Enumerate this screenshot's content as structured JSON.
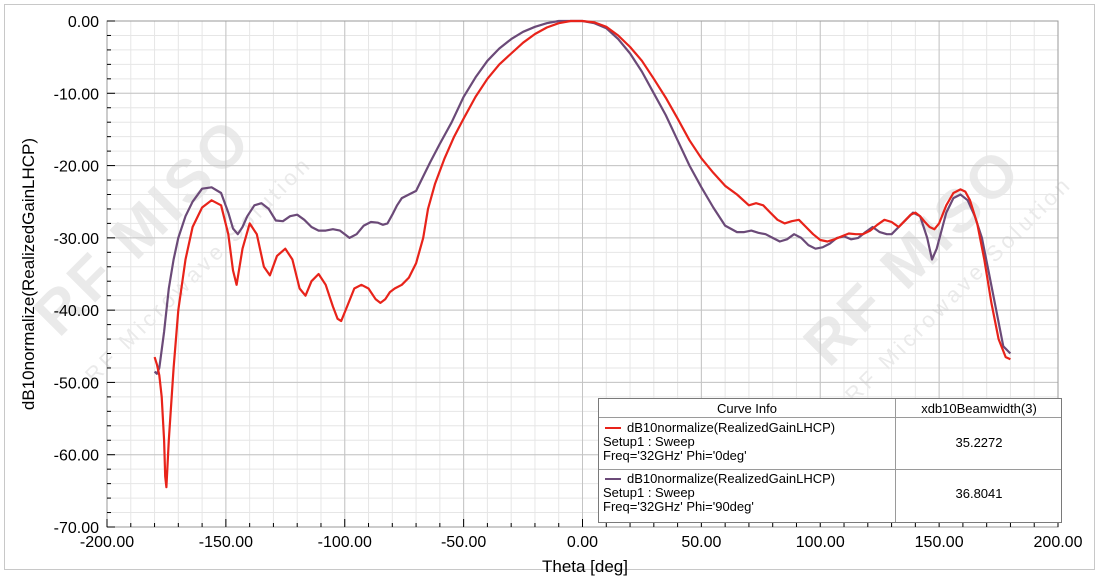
{
  "chart_data": {
    "type": "line",
    "xlabel": "Theta [deg]",
    "ylabel": "dB10normalize(RealizedGainLHCP)",
    "xlim": [
      -200,
      200
    ],
    "ylim": [
      -70,
      0
    ],
    "x_ticks": [
      "-200.00",
      "-150.00",
      "-100.00",
      "-50.00",
      "0.00",
      "50.00",
      "100.00",
      "150.00",
      "200.00"
    ],
    "y_ticks": [
      "0.00",
      "-10.00",
      "-20.00",
      "-30.00",
      "-40.00",
      "-50.00",
      "-60.00",
      "-70.00"
    ],
    "x_tick_values": [
      -200,
      -150,
      -100,
      -50,
      0,
      50,
      100,
      150,
      200
    ],
    "y_tick_values": [
      0,
      -10,
      -20,
      -30,
      -40,
      -50,
      -60,
      -70
    ],
    "grid": true,
    "legend_position": "bottom-right",
    "series": [
      {
        "name": "dB10normalize(RealizedGainLHCP)",
        "color": "#e8231a",
        "x": [
          -180,
          -179,
          -178,
          -177,
          -176,
          -175.5,
          -175,
          -174,
          -172,
          -170,
          -167,
          -164,
          -160,
          -156,
          -152,
          -149,
          -147,
          -145.5,
          -143,
          -140,
          -137,
          -134,
          -131.5,
          -128.5,
          -125,
          -122,
          -119,
          -116.5,
          -114,
          -111,
          -108,
          -105,
          -103,
          -101.5,
          -99,
          -96,
          -93,
          -90,
          -87,
          -85,
          -83,
          -81,
          -79,
          -76,
          -73,
          -70,
          -67,
          -65,
          -62,
          -58,
          -54,
          -50,
          -45,
          -40,
          -35,
          -30,
          -25,
          -20,
          -15,
          -10,
          -5,
          0,
          5,
          10,
          15,
          20,
          25,
          30,
          35,
          40,
          45,
          50,
          55,
          60,
          65,
          70,
          73,
          76,
          79,
          82,
          85,
          88,
          91,
          94,
          97,
          100,
          103,
          106,
          109,
          112,
          115,
          118,
          121,
          124,
          127,
          130,
          133,
          136,
          138,
          140,
          142,
          144,
          146,
          148,
          150,
          153,
          156,
          159,
          161,
          163,
          166,
          169,
          172,
          175,
          178,
          180
        ],
        "y": [
          -46.5,
          -47.5,
          -49,
          -52,
          -58,
          -63,
          -64.5,
          -58,
          -48,
          -40,
          -33,
          -28.5,
          -25.8,
          -24.8,
          -25.5,
          -29.5,
          -34.5,
          -36.5,
          -31.5,
          -28,
          -29.5,
          -34,
          -35.2,
          -32.5,
          -31.5,
          -33,
          -37,
          -38,
          -36,
          -35,
          -36.5,
          -39.5,
          -41.2,
          -41.5,
          -39.5,
          -37,
          -36.5,
          -37,
          -38.5,
          -39,
          -38.5,
          -37.5,
          -37,
          -36.5,
          -35.5,
          -33.5,
          -30,
          -26,
          -22.5,
          -19,
          -16,
          -13.5,
          -10.5,
          -8,
          -6,
          -4.5,
          -3,
          -1.8,
          -0.9,
          -0.3,
          0,
          0,
          -0.2,
          -0.8,
          -2,
          -3.6,
          -5.5,
          -8,
          -10.6,
          -13.5,
          -16.5,
          -19,
          -21,
          -22.8,
          -24,
          -25.5,
          -25.2,
          -25.5,
          -26.5,
          -27.5,
          -28,
          -27.7,
          -27.5,
          -28.5,
          -29.5,
          -30.3,
          -30.5,
          -30.2,
          -29.8,
          -29.4,
          -29.5,
          -29.5,
          -29,
          -28.2,
          -27.5,
          -27.8,
          -28.5,
          -27.5,
          -26.8,
          -26.5,
          -27,
          -27.8,
          -28.5,
          -28.8,
          -28,
          -25.5,
          -23.8,
          -23.3,
          -23.6,
          -24.8,
          -28,
          -33,
          -39,
          -44,
          -46.5,
          -46.8
        ]
      },
      {
        "name": "dB10normalize(RealizedGainLHCP)",
        "color": "#6b4a78",
        "x": [
          -180,
          -179,
          -178,
          -176,
          -174,
          -172,
          -170,
          -167,
          -164,
          -160,
          -156,
          -152,
          -149,
          -147,
          -145,
          -143,
          -141,
          -138,
          -135,
          -132,
          -129,
          -126,
          -123,
          -120,
          -117,
          -114,
          -111,
          -108,
          -105,
          -102,
          -100,
          -98,
          -95,
          -92,
          -89,
          -86,
          -84,
          -82,
          -80,
          -78,
          -76,
          -73,
          -70,
          -67,
          -64,
          -60,
          -55,
          -50,
          -45,
          -40,
          -35,
          -30,
          -25,
          -20,
          -15,
          -10,
          -5,
          0,
          5,
          10,
          15,
          20,
          25,
          30,
          35,
          40,
          45,
          50,
          55,
          60,
          65,
          68,
          71,
          74,
          77,
          80,
          83,
          86,
          89,
          92,
          95,
          98,
          101,
          104,
          107,
          110,
          113,
          116,
          119,
          122,
          125,
          128,
          130,
          133,
          136,
          139,
          142,
          145,
          147,
          149,
          151,
          153,
          156,
          159,
          162,
          165,
          168,
          171,
          174,
          177,
          180
        ],
        "y": [
          -48.5,
          -48.8,
          -48,
          -43,
          -37,
          -33,
          -30,
          -27,
          -25,
          -23.2,
          -23,
          -23.8,
          -26.5,
          -28.7,
          -29.5,
          -28.5,
          -27,
          -25.5,
          -25.2,
          -26,
          -27.6,
          -27.7,
          -27,
          -26.8,
          -27.5,
          -28.5,
          -29,
          -29,
          -28.8,
          -29,
          -29.5,
          -30,
          -29.5,
          -28.3,
          -27.8,
          -27.9,
          -28.2,
          -28,
          -26.8,
          -25.5,
          -24.5,
          -24,
          -23.5,
          -21.5,
          -19.5,
          -17,
          -14,
          -10.5,
          -7.8,
          -5.5,
          -3.8,
          -2.5,
          -1.5,
          -0.8,
          -0.3,
          0,
          0,
          0,
          -0.3,
          -1,
          -2.5,
          -4.5,
          -7,
          -10,
          -13,
          -16.5,
          -20,
          -23,
          -25.8,
          -28.3,
          -29.2,
          -29.2,
          -29,
          -29.3,
          -29.5,
          -30,
          -30.5,
          -30.2,
          -29.5,
          -30,
          -31,
          -31.5,
          -31.3,
          -30.8,
          -30,
          -29.8,
          -30.2,
          -30,
          -29.2,
          -28.5,
          -29.2,
          -29.5,
          -29.5,
          -28.5,
          -27.5,
          -26.5,
          -27,
          -30,
          -33,
          -31.5,
          -29,
          -26.5,
          -24.5,
          -24,
          -24.8,
          -27,
          -30,
          -35,
          -40,
          -45,
          -46
        ]
      }
    ],
    "legend": {
      "header_left": "Curve Info",
      "header_right": "xdb10Beamwidth(3)",
      "entries": [
        {
          "line1": "dB10normalize(RealizedGainLHCP)",
          "line2": "Setup1 : Sweep",
          "line3": "Freq='32GHz' Phi='0deg'",
          "value": "35.2272",
          "color": "#e8231a"
        },
        {
          "line1": "dB10normalize(RealizedGainLHCP)",
          "line2": "Setup1 : Sweep",
          "line3": "Freq='32GHz' Phi='90deg'",
          "value": "36.8041",
          "color": "#6b4a78"
        }
      ]
    }
  },
  "watermark": {
    "brand": "RF MISO",
    "tagline": "RF Microwave Solution"
  }
}
